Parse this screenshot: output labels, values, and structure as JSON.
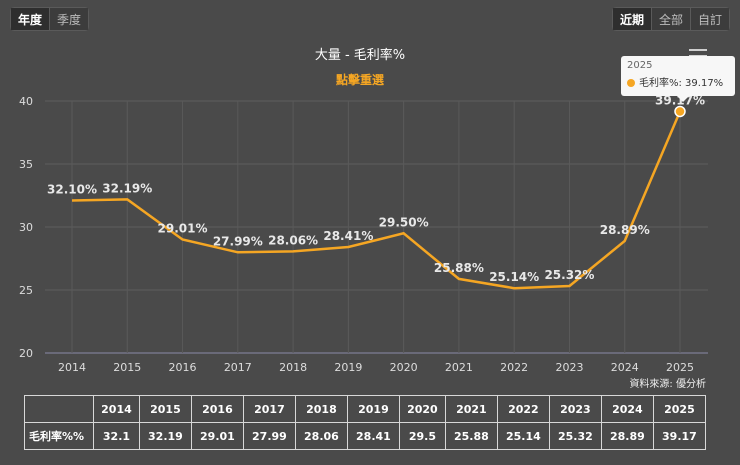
{
  "controls": {
    "period_left": [
      "年度",
      "季度"
    ],
    "period_left_active": 0,
    "range_right": [
      "近期",
      "全部",
      "自訂"
    ],
    "range_right_active": 0
  },
  "chart_data": {
    "type": "line",
    "title": "大量 - 毛利率%",
    "subtitle": "點擊重選",
    "categories": [
      "2014",
      "2015",
      "2016",
      "2017",
      "2018",
      "2019",
      "2020",
      "2021",
      "2022",
      "2023",
      "2024",
      "2025"
    ],
    "series": [
      {
        "name": "毛利率%",
        "values": [
          32.1,
          32.19,
          29.01,
          27.99,
          28.06,
          28.41,
          29.5,
          25.88,
          25.14,
          25.32,
          28.89,
          39.17
        ],
        "color": "#f5a623"
      }
    ],
    "data_labels": [
      "32.10%",
      "32.19%",
      "29.01%",
      "27.99%",
      "28.06%",
      "28.41%",
      "29.50%",
      "25.88%",
      "25.14%",
      "25.32%",
      "28.89%",
      "39.17%"
    ],
    "yticks": [
      20,
      25,
      30,
      35,
      40
    ],
    "ylim": [
      20,
      40
    ],
    "grid": true
  },
  "tooltip": {
    "year": "2025",
    "text": "毛利率%: 39.17%"
  },
  "credit": "資料來源: 優分析",
  "table": {
    "headers": [
      "2014",
      "2015",
      "2016",
      "2017",
      "2018",
      "2019",
      "2020",
      "2021",
      "2022",
      "2023",
      "2024",
      "2025"
    ],
    "row_label": "毛利率%%",
    "row_values": [
      "32.1",
      "32.19",
      "29.01",
      "27.99",
      "28.06",
      "28.41",
      "29.5",
      "25.88",
      "25.14",
      "25.32",
      "28.89",
      "39.17"
    ]
  }
}
